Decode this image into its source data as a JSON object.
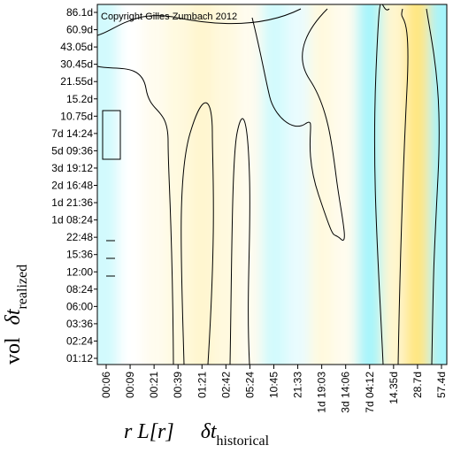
{
  "chart_data": {
    "type": "heatmap",
    "annotation": "Copyright Gilles Zumbach 2012",
    "x_label": [
      "r L[r]",
      "δt",
      "historical"
    ],
    "y_label": [
      "vol",
      "δt",
      "realized"
    ],
    "categories": [
      "00:06",
      "00:09",
      "00:21",
      "00:39",
      "01:21",
      "02:42",
      "05:24",
      "10:45",
      "21:33",
      "1d 19:03",
      "3d 14:06",
      "7d 04:12",
      "14.35d",
      "28.7d",
      "57.4d"
    ],
    "y_categories": [
      "86.1d",
      "60.9d",
      "43.05d",
      "30.45d",
      "21.55d",
      "15.2d",
      "10.75d",
      "7d 14:24",
      "5d 09:36",
      "3d 19:12",
      "2d 16:48",
      "1d 21:36",
      "1d 08:24",
      "22:48",
      "15:36",
      "12:00",
      "08:24",
      "06:00",
      "03:36",
      "02:24",
      "01:12"
    ],
    "values": [
      -0.2,
      0,
      0.1,
      0.2,
      0.3,
      0.2,
      0.1,
      -0.2,
      -0.1,
      0.2,
      0.1,
      -0.4,
      0.3,
      0.8,
      -0.4
    ],
    "zlim": [
      -1,
      1
    ],
    "colors": {
      "low": "#20e4f4",
      "mid": "#ffffff",
      "high": "#ffe060"
    }
  }
}
